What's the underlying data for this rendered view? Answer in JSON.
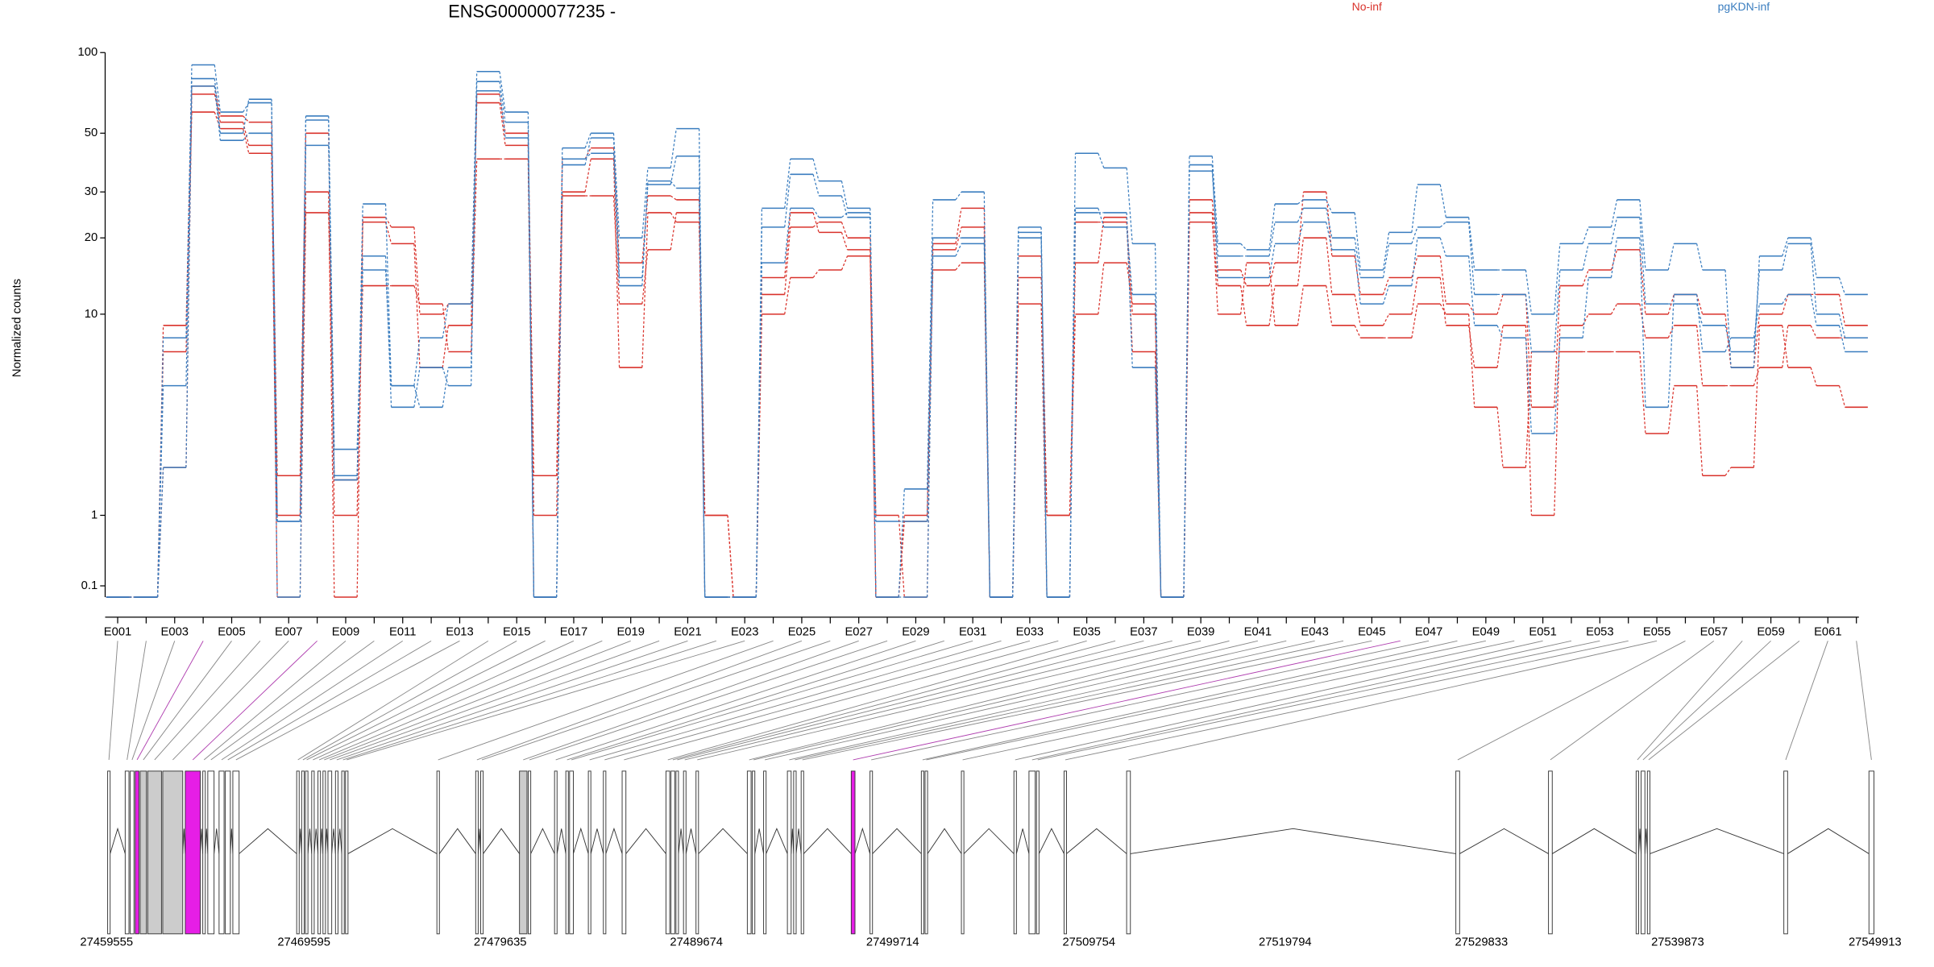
{
  "chart_data": {
    "type": "exon_usage",
    "title": "ENSG00000077235 -",
    "y_label": "Normalized counts",
    "yscale": "log1p",
    "ylim": [
      0,
      100
    ],
    "yticks": [
      0.1,
      1,
      10,
      20,
      30,
      50,
      100
    ],
    "categories": [
      "E001",
      null,
      "E003",
      null,
      "E005",
      null,
      "E007",
      null,
      "E009",
      null,
      "E011",
      null,
      "E013",
      null,
      "E015",
      null,
      "E017",
      null,
      "E019",
      null,
      "E021",
      null,
      "E023",
      null,
      "E025",
      null,
      "E027",
      null,
      "E029",
      null,
      "E031",
      null,
      "E033",
      null,
      "E035",
      null,
      "E037",
      null,
      "E039",
      null,
      "E041",
      null,
      "E043",
      null,
      "E045",
      null,
      "E047",
      null,
      "E049",
      null,
      "E051",
      null,
      "E053",
      null,
      "E055",
      null,
      "E057",
      null,
      "E059",
      null,
      "E061",
      null
    ],
    "series": [
      {
        "name": "No-inf",
        "color": "#d9322b",
        "samples": [
          [
            0,
            0,
            9,
            75,
            58,
            55,
            1.8,
            50,
            1,
            24,
            22,
            10,
            11,
            70,
            50,
            1.8,
            40,
            44,
            16,
            29,
            28,
            1,
            0,
            12,
            22,
            23,
            20,
            1,
            0,
            19,
            26,
            0,
            14,
            1,
            10,
            16,
            11,
            0,
            28,
            15,
            13,
            16,
            30,
            17,
            12,
            14,
            17,
            11,
            10,
            12,
            4,
            13,
            15,
            18,
            10,
            12,
            10,
            6,
            10,
            12,
            12,
            9
          ],
          [
            0,
            0,
            2,
            70,
            55,
            45,
            1,
            30,
            0,
            23,
            19,
            6,
            9,
            65,
            45,
            1,
            30,
            40,
            6,
            25,
            23,
            1,
            0,
            10,
            14,
            15,
            17,
            0,
            1,
            15,
            16,
            0,
            17,
            1,
            16,
            24,
            10,
            0,
            23,
            13,
            9,
            13,
            20,
            12,
            9,
            10,
            14,
            9,
            6,
            9,
            1,
            9,
            10,
            11,
            8,
            9,
            5,
            5,
            6,
            9,
            8,
            8
          ],
          [
            0,
            0,
            7,
            60,
            52,
            42,
            0,
            25,
            1.7,
            13,
            13,
            11,
            7,
            40,
            40,
            0,
            29,
            29,
            11,
            18,
            25,
            0,
            0,
            14,
            25,
            21,
            18,
            0,
            0.9,
            18,
            22,
            0,
            11,
            0,
            23,
            23,
            7,
            0,
            25,
            10,
            16,
            9,
            13,
            9,
            8,
            8,
            11,
            10,
            4,
            2,
            7,
            7,
            7,
            7,
            3,
            5,
            1.8,
            2,
            9,
            6,
            5,
            4
          ]
        ]
      },
      {
        "name": "pgKDN-inf",
        "color": "#3a7dbf",
        "samples": [
          [
            0,
            0,
            8,
            90,
            60,
            65,
            0.9,
            58,
            1.7,
            27,
            5,
            8,
            11,
            85,
            60,
            0,
            44,
            50,
            20,
            37,
            52,
            0,
            0,
            26,
            40,
            33,
            26,
            0,
            1.5,
            28,
            30,
            0,
            22,
            0,
            42,
            37,
            19,
            0,
            41,
            19,
            18,
            27,
            28,
            25,
            15,
            21,
            32,
            24,
            15,
            15,
            10,
            19,
            22,
            28,
            15,
            19,
            15,
            6,
            17,
            20,
            14,
            12
          ],
          [
            0,
            0,
            5,
            80,
            50,
            67,
            0.9,
            56,
            2.5,
            17,
            4,
            6,
            5,
            78,
            55,
            0,
            38,
            48,
            14,
            32,
            41,
            0,
            0,
            22,
            35,
            29,
            24,
            0.9,
            0.9,
            20,
            20,
            0,
            21,
            0,
            26,
            22,
            12,
            0,
            36,
            17,
            17,
            23,
            26,
            20,
            14,
            19,
            22,
            23,
            12,
            12,
            7,
            15,
            19,
            24,
            11,
            11,
            9,
            7,
            15,
            19,
            10,
            8
          ],
          [
            0,
            0,
            2,
            75,
            47,
            50,
            0,
            45,
            1.8,
            15,
            5,
            4,
            6,
            72,
            48,
            0,
            40,
            42,
            13,
            33,
            31,
            0,
            0,
            16,
            26,
            24,
            25,
            0,
            0,
            17,
            19,
            0,
            20,
            0,
            25,
            25,
            6,
            0,
            38,
            14,
            14,
            19,
            23,
            18,
            11,
            13,
            20,
            17,
            9,
            8,
            3,
            8,
            14,
            20,
            4,
            12,
            7,
            8,
            11,
            12,
            9,
            7
          ]
        ]
      }
    ],
    "gene_model": {
      "xlim": [
        27459555,
        27549913
      ],
      "xticks": [
        27459555,
        27469595,
        27479635,
        27489674,
        27499714,
        27509754,
        27519794,
        27529833,
        27539873,
        27549913
      ],
      "exon_starts": [
        27459555,
        27460452,
        27460708,
        27460964,
        27461220,
        27461604,
        27462373,
        27463525,
        27464422,
        27464678,
        27465255,
        27465575,
        27465959,
        27469225,
        27469481,
        27469673,
        27469994,
        27470314,
        27470570,
        27470826,
        27471210,
        27471530,
        27471723,
        27476398,
        27478383,
        27478639,
        27480624,
        27481072,
        27482417,
        27482994,
        27483186,
        27484146,
        27484915,
        27485875,
        27488117,
        27488373,
        27488629,
        27489014,
        27489654,
        27492279,
        27492536,
        27493112,
        27494329,
        27494649,
        27495033,
        27497595,
        27498555,
        27501181,
        27501373,
        27503230,
        27505917,
        27506688,
        27507072,
        27508482,
        27511684,
        27528526,
        27533265,
        27537748,
        27538004,
        27538324,
        27545305,
        27549659
      ],
      "exon_ends": [
        27459683,
        27460644,
        27460900,
        27461156,
        27461540,
        27462309,
        27463397,
        27464294,
        27464550,
        27464998,
        27465511,
        27465831,
        27466279,
        27469353,
        27469609,
        27469801,
        27470122,
        27470442,
        27470698,
        27471018,
        27471338,
        27471659,
        27471851,
        27476526,
        27478511,
        27478767,
        27481008,
        27481200,
        27482545,
        27483122,
        27483378,
        27484274,
        27485043,
        27486068,
        27488309,
        27488565,
        27488757,
        27489142,
        27489782,
        27492472,
        27492664,
        27493240,
        27494521,
        27494777,
        27495161,
        27497787,
        27498683,
        27501309,
        27501501,
        27503358,
        27506045,
        27507008,
        27507201,
        27508610,
        27511876,
        27528718,
        27533457,
        27537876,
        27538197,
        27538452,
        27545497,
        27549913
      ],
      "exon_colors": [
        "#ffffff",
        "#ffffff",
        "#ffffff",
        "#e61ee6",
        "#cccccc",
        "#cccccc",
        "#cccccc",
        "#e61ee6",
        "#ffffff",
        "#ffffff",
        "#ffffff",
        "#ffffff",
        "#ffffff",
        "#ffffff",
        "#ffffff",
        "#ffffff",
        "#ffffff",
        "#ffffff",
        "#ffffff",
        "#ffffff",
        "#ffffff",
        "#ffffff",
        "#ffffff",
        "#ffffff",
        "#ffffff",
        "#ffffff",
        "#cccccc",
        "#ffffff",
        "#ffffff",
        "#ffffff",
        "#ffffff",
        "#ffffff",
        "#ffffff",
        "#ffffff",
        "#ffffff",
        "#ffffff",
        "#ffffff",
        "#ffffff",
        "#ffffff",
        "#ffffff",
        "#ffffff",
        "#ffffff",
        "#ffffff",
        "#ffffff",
        "#ffffff",
        "#e61ee6",
        "#ffffff",
        "#ffffff",
        "#ffffff",
        "#ffffff",
        "#ffffff",
        "#ffffff",
        "#ffffff",
        "#ffffff",
        "#ffffff",
        "#ffffff",
        "#ffffff",
        "#ffffff",
        "#ffffff",
        "#ffffff",
        "#ffffff",
        "#ffffff"
      ]
    }
  }
}
